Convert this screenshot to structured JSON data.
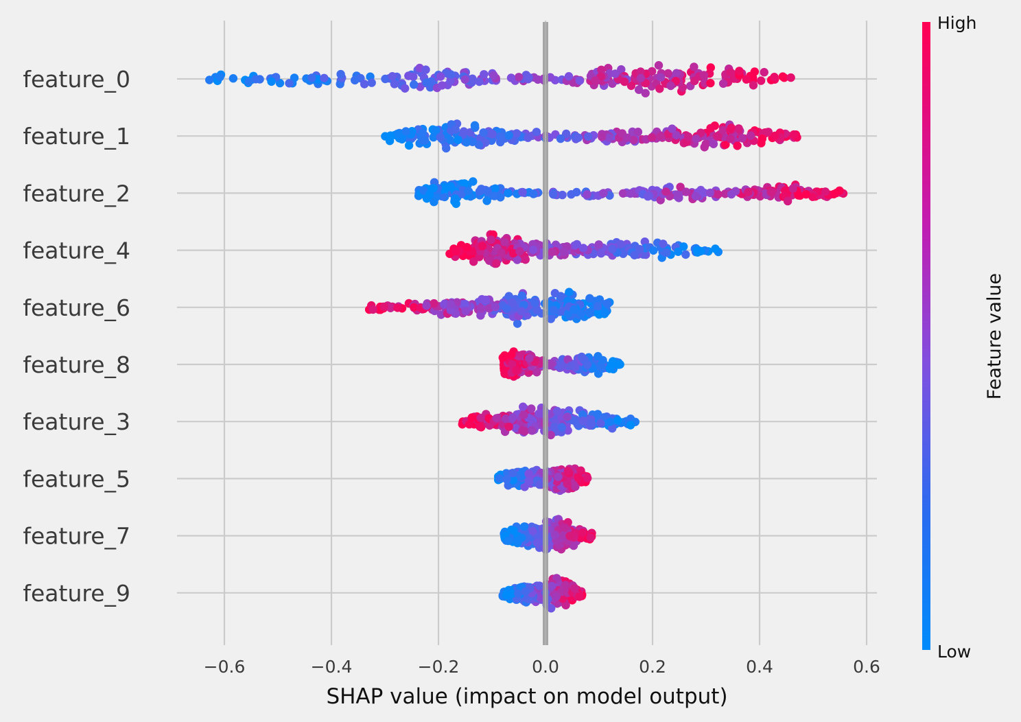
{
  "chart_data": {
    "type": "scatter",
    "subtype": "shap-beeswarm",
    "title": "",
    "xlabel": "SHAP value (impact on model output)",
    "ylabel": "",
    "xlim": [
      -0.7,
      0.65
    ],
    "xticks": [
      -0.6,
      -0.4,
      -0.2,
      0.0,
      0.2,
      0.4,
      0.6
    ],
    "xtick_labels": [
      "−0.6",
      "−0.4",
      "−0.2",
      "0.0",
      "0.2",
      "0.4",
      "0.6"
    ],
    "grid": true,
    "features": [
      {
        "name": "feature_0",
        "range": [
          -0.63,
          0.47
        ],
        "dense": [
          -0.22,
          0.22
        ],
        "trend": "positive",
        "density": [
          [
            -0.6,
            0.3
          ],
          [
            -0.5,
            0.45
          ],
          [
            -0.4,
            0.35
          ],
          [
            -0.3,
            0.5
          ],
          [
            -0.22,
            0.9
          ],
          [
            -0.15,
            0.55
          ],
          [
            -0.05,
            0.2
          ],
          [
            0.05,
            0.35
          ],
          [
            0.12,
            0.7
          ],
          [
            0.22,
            1.0
          ],
          [
            0.3,
            0.8
          ],
          [
            0.4,
            0.5
          ],
          [
            0.47,
            0.2
          ]
        ]
      },
      {
        "name": "feature_1",
        "range": [
          -0.31,
          0.47
        ],
        "dense": [
          -0.17,
          0.32
        ],
        "trend": "positive",
        "density": [
          [
            -0.3,
            0.35
          ],
          [
            -0.2,
            0.8
          ],
          [
            -0.17,
            1.0
          ],
          [
            -0.1,
            0.5
          ],
          [
            -0.05,
            0.3
          ],
          [
            0.05,
            0.25
          ],
          [
            0.12,
            0.5
          ],
          [
            0.2,
            0.3
          ],
          [
            0.28,
            0.7
          ],
          [
            0.33,
            0.9
          ],
          [
            0.4,
            0.6
          ],
          [
            0.47,
            0.2
          ]
        ]
      },
      {
        "name": "feature_2",
        "range": [
          -0.24,
          0.56
        ],
        "dense": [
          -0.17,
          0.45
        ],
        "trend": "positive",
        "density": [
          [
            -0.24,
            0.3
          ],
          [
            -0.17,
            1.0
          ],
          [
            -0.1,
            0.5
          ],
          [
            -0.05,
            0.15
          ],
          [
            0.05,
            0.15
          ],
          [
            0.15,
            0.3
          ],
          [
            0.25,
            0.4
          ],
          [
            0.35,
            0.3
          ],
          [
            0.45,
            0.5
          ],
          [
            0.5,
            0.45
          ],
          [
            0.56,
            0.2
          ]
        ]
      },
      {
        "name": "feature_4",
        "range": [
          -0.18,
          0.33
        ],
        "dense": [
          -0.1,
          0.22
        ],
        "trend": "negative",
        "density": [
          [
            -0.18,
            0.4
          ],
          [
            -0.1,
            1.0
          ],
          [
            -0.05,
            0.8
          ],
          [
            0.0,
            0.4
          ],
          [
            0.05,
            0.5
          ],
          [
            0.12,
            0.45
          ],
          [
            0.2,
            0.45
          ],
          [
            0.25,
            0.4
          ],
          [
            0.33,
            0.1
          ]
        ]
      },
      {
        "name": "feature_6",
        "range": [
          -0.33,
          0.13
        ],
        "dense": [
          -0.2,
          0.1
        ],
        "trend": "negative",
        "density": [
          [
            -0.33,
            0.2
          ],
          [
            -0.25,
            0.3
          ],
          [
            -0.18,
            0.5
          ],
          [
            -0.1,
            0.6
          ],
          [
            -0.05,
            0.9
          ],
          [
            0.0,
            0.9
          ],
          [
            0.05,
            1.0
          ],
          [
            0.1,
            0.7
          ],
          [
            0.13,
            0.3
          ]
        ]
      },
      {
        "name": "feature_8",
        "range": [
          -0.08,
          0.14
        ],
        "dense": [
          -0.05,
          0.12
        ],
        "trend": "negative",
        "density": [
          [
            -0.08,
            0.6
          ],
          [
            -0.04,
            1.0
          ],
          [
            -0.02,
            0.6
          ],
          [
            0.0,
            0.2
          ],
          [
            0.05,
            0.5
          ],
          [
            0.1,
            0.6
          ],
          [
            0.14,
            0.2
          ]
        ]
      },
      {
        "name": "feature_3",
        "range": [
          -0.16,
          0.18
        ],
        "dense": [
          -0.1,
          0.13
        ],
        "trend": "negative",
        "density": [
          [
            -0.16,
            0.2
          ],
          [
            -0.1,
            0.6
          ],
          [
            -0.05,
            0.9
          ],
          [
            0.0,
            1.0
          ],
          [
            0.05,
            0.6
          ],
          [
            0.1,
            0.5
          ],
          [
            0.15,
            0.3
          ],
          [
            0.18,
            0.1
          ]
        ]
      },
      {
        "name": "feature_5",
        "range": [
          -0.09,
          0.08
        ],
        "dense": [
          -0.06,
          0.06
        ],
        "trend": "positive",
        "density": [
          [
            -0.09,
            0.3
          ],
          [
            -0.05,
            0.7
          ],
          [
            -0.02,
            0.5
          ],
          [
            0.0,
            0.6
          ],
          [
            0.03,
            1.0
          ],
          [
            0.06,
            0.6
          ],
          [
            0.08,
            0.2
          ]
        ]
      },
      {
        "name": "feature_7",
        "range": [
          -0.08,
          0.09
        ],
        "dense": [
          -0.06,
          0.07
        ],
        "trend": "positive",
        "density": [
          [
            -0.08,
            0.3
          ],
          [
            -0.04,
            0.7
          ],
          [
            -0.01,
            0.8
          ],
          [
            0.02,
            1.0
          ],
          [
            0.05,
            0.6
          ],
          [
            0.09,
            0.2
          ]
        ]
      },
      {
        "name": "feature_9",
        "range": [
          -0.08,
          0.07
        ],
        "dense": [
          -0.05,
          0.05
        ],
        "trend": "positive",
        "density": [
          [
            -0.08,
            0.3
          ],
          [
            -0.04,
            0.6
          ],
          [
            -0.01,
            0.5
          ],
          [
            0.02,
            1.0
          ],
          [
            0.05,
            0.6
          ],
          [
            0.07,
            0.2
          ]
        ]
      }
    ],
    "colorbar": {
      "title": "Feature value",
      "high_label": "High",
      "low_label": "Low",
      "low_color": "#008bfb",
      "mid_color": "#7f50e0",
      "high_color": "#ff0052"
    },
    "background": "#f0f0f0",
    "grid_color": "#cbcbcb",
    "zero_line_color": "#999999"
  }
}
